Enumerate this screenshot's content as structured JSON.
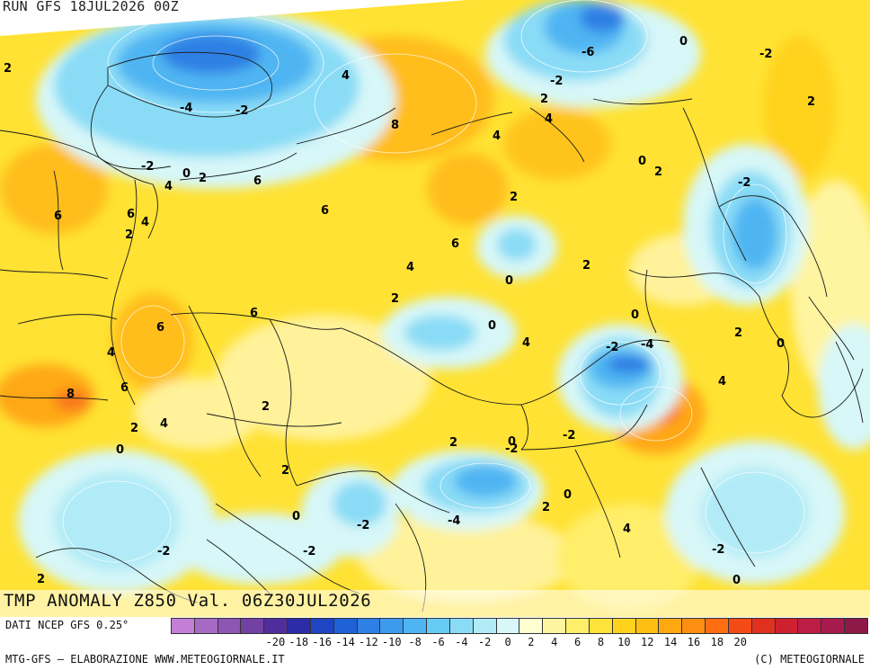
{
  "header": {
    "run": "RUN GFS 18JUL2026 00Z"
  },
  "title": "TMP ANOMALY Z850 Val. 06Z30JUL2026",
  "footer": {
    "source": "DATI NCEP GFS 0.25°",
    "credit_left": "MTG-GFS – ELABORAZIONE WWW.METEOGIORNALE.IT",
    "credit_right": "(C) METEOGIORNALE"
  },
  "colorbar": {
    "colors": [
      "#c37fd8",
      "#a66ac4",
      "#8d55b4",
      "#7340a3",
      "#4f2e9b",
      "#2b2ca6",
      "#1f45c2",
      "#1f62d8",
      "#2f80e4",
      "#3d9bee",
      "#4fb5f2",
      "#68cbf6",
      "#8adcf6",
      "#b1ebf7",
      "#d7f7f8",
      "#ffffd0",
      "#fff5a0",
      "#ffee6a",
      "#ffe23a",
      "#ffd21c",
      "#ffbf12",
      "#ffa812",
      "#ff8e12",
      "#ff6e12",
      "#f24b16",
      "#e0301e",
      "#cf2030",
      "#bd1c44",
      "#a61a4e",
      "#8e1848"
    ],
    "tick_labels": [
      "-20",
      "-18",
      "-16",
      "-14",
      "-12",
      "-10",
      "-8",
      "-6",
      "-4",
      "-2",
      "0",
      "2",
      "4",
      "6",
      "8",
      "10",
      "12",
      "14",
      "16",
      "18",
      "20"
    ]
  },
  "map_labels": [
    {
      "text": "2"
    },
    {
      "text": "-4"
    },
    {
      "text": "-2"
    },
    {
      "text": "4"
    },
    {
      "text": "8"
    },
    {
      "text": "-6"
    },
    {
      "text": "-2"
    },
    {
      "text": "2"
    },
    {
      "text": "4"
    },
    {
      "text": "0"
    },
    {
      "text": "-2"
    },
    {
      "text": "2"
    },
    {
      "text": "4"
    },
    {
      "text": "-2"
    },
    {
      "text": "0"
    },
    {
      "text": "2"
    },
    {
      "text": "4"
    },
    {
      "text": "6"
    },
    {
      "text": "6"
    },
    {
      "text": "6"
    },
    {
      "text": "4"
    },
    {
      "text": "2"
    },
    {
      "text": "0"
    },
    {
      "text": "2"
    },
    {
      "text": "2"
    },
    {
      "text": "-2"
    },
    {
      "text": "6"
    },
    {
      "text": "6"
    },
    {
      "text": "6"
    },
    {
      "text": "4"
    },
    {
      "text": "0"
    },
    {
      "text": "2"
    },
    {
      "text": "0"
    },
    {
      "text": "4"
    },
    {
      "text": "-2"
    },
    {
      "text": "-4"
    },
    {
      "text": "4"
    },
    {
      "text": "8"
    },
    {
      "text": "6"
    },
    {
      "text": "6"
    },
    {
      "text": "2"
    },
    {
      "text": "2"
    },
    {
      "text": "0"
    },
    {
      "text": "-2"
    },
    {
      "text": "-2"
    },
    {
      "text": "4"
    },
    {
      "text": "2"
    },
    {
      "text": "0"
    },
    {
      "text": "0"
    },
    {
      "text": "-2"
    },
    {
      "text": "0"
    },
    {
      "text": "2"
    },
    {
      "text": "2"
    },
    {
      "text": "4"
    },
    {
      "text": "-4"
    },
    {
      "text": "0"
    },
    {
      "text": "-2"
    },
    {
      "text": "-2"
    },
    {
      "text": "0"
    },
    {
      "text": "4"
    },
    {
      "text": "-2"
    },
    {
      "text": "2"
    },
    {
      "text": "2"
    },
    {
      "text": "0"
    },
    {
      "text": "2"
    }
  ]
}
